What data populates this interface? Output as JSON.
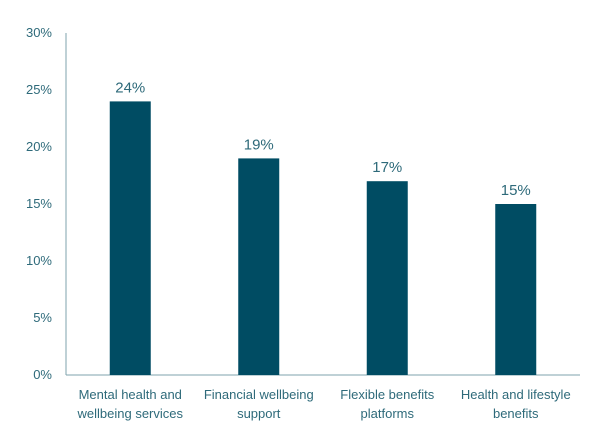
{
  "chart_data": {
    "type": "bar",
    "categories": [
      [
        "Mental health and",
        "wellbeing services"
      ],
      [
        "Financial wellbeing",
        "support"
      ],
      [
        "Flexible benefits",
        "platforms"
      ],
      [
        "Health and lifestyle",
        "benefits"
      ]
    ],
    "values": [
      24,
      19,
      17,
      15
    ],
    "value_labels": [
      "24%",
      "19%",
      "17%",
      "15%"
    ],
    "ylim": [
      0,
      30
    ],
    "yticks": [
      0,
      5,
      10,
      15,
      20,
      25,
      30
    ],
    "ytick_labels": [
      "0%",
      "5%",
      "10%",
      "15%",
      "20%",
      "25%",
      "30%"
    ],
    "title": "",
    "xlabel": "",
    "ylabel": "",
    "grid": false,
    "bar_color": "#004c63",
    "axis_color": "#7fa3ad",
    "text_color": "#2e6a7a"
  }
}
